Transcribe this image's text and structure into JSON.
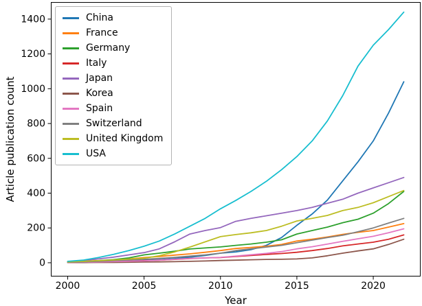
{
  "chart_data": {
    "type": "line",
    "title": "",
    "xlabel": "Year",
    "ylabel": "Article publication count",
    "x": [
      2000,
      2001,
      2002,
      2003,
      2004,
      2005,
      2006,
      2007,
      2008,
      2009,
      2010,
      2011,
      2012,
      2013,
      2014,
      2015,
      2016,
      2017,
      2018,
      2019,
      2020,
      2021,
      2022
    ],
    "series": [
      {
        "name": "China",
        "color": "#1f77b4",
        "values": [
          2,
          3,
          5,
          7,
          10,
          14,
          18,
          24,
          32,
          42,
          55,
          62,
          75,
          100,
          145,
          215,
          280,
          360,
          470,
          580,
          700,
          860,
          1040
        ]
      },
      {
        "name": "France",
        "color": "#ff7f0e",
        "values": [
          5,
          8,
          12,
          17,
          22,
          30,
          36,
          44,
          51,
          60,
          70,
          82,
          88,
          95,
          105,
          125,
          135,
          148,
          163,
          175,
          185,
          205,
          225
        ]
      },
      {
        "name": "Germany",
        "color": "#2ca02c",
        "values": [
          4,
          7,
          12,
          18,
          28,
          45,
          55,
          66,
          79,
          85,
          91,
          100,
          108,
          118,
          132,
          165,
          185,
          205,
          230,
          250,
          285,
          340,
          410
        ]
      },
      {
        "name": "Italy",
        "color": "#d62728",
        "values": [
          2,
          3,
          5,
          7,
          9,
          12,
          15,
          19,
          24,
          28,
          30,
          36,
          42,
          48,
          53,
          60,
          70,
          82,
          97,
          108,
          118,
          135,
          160
        ]
      },
      {
        "name": "Japan",
        "color": "#9467bd",
        "values": [
          5,
          12,
          22,
          32,
          45,
          58,
          80,
          120,
          165,
          185,
          202,
          238,
          255,
          270,
          285,
          300,
          318,
          342,
          365,
          400,
          430,
          460,
          490
        ]
      },
      {
        "name": "Korea",
        "color": "#8c564b",
        "values": [
          1,
          1,
          2,
          2,
          3,
          4,
          5,
          6,
          8,
          10,
          13,
          15,
          17,
          19,
          20,
          22,
          28,
          40,
          55,
          68,
          80,
          105,
          135
        ]
      },
      {
        "name": "Spain",
        "color": "#e377c2",
        "values": [
          2,
          3,
          5,
          7,
          9,
          11,
          15,
          20,
          25,
          28,
          31,
          38,
          46,
          54,
          64,
          80,
          92,
          107,
          123,
          138,
          152,
          172,
          195
        ]
      },
      {
        "name": "Switzerland",
        "color": "#7f7f7f",
        "values": [
          3,
          5,
          8,
          12,
          16,
          20,
          25,
          31,
          38,
          45,
          55,
          70,
          80,
          90,
          100,
          115,
          130,
          145,
          158,
          178,
          200,
          228,
          255
        ]
      },
      {
        "name": "United Kingdom",
        "color": "#bcbd22",
        "values": [
          5,
          8,
          12,
          16,
          21,
          26,
          40,
          62,
          90,
          120,
          150,
          162,
          172,
          185,
          210,
          240,
          255,
          272,
          300,
          318,
          345,
          380,
          415
        ]
      },
      {
        "name": "USA",
        "color": "#17becf",
        "values": [
          8,
          15,
          30,
          48,
          70,
          95,
          125,
          165,
          210,
          255,
          310,
          358,
          410,
          468,
          535,
          610,
          700,
          815,
          960,
          1130,
          1250,
          1340,
          1440
        ]
      }
    ],
    "xticks": [
      2000,
      2005,
      2010,
      2015,
      2020
    ],
    "yticks": [
      0,
      200,
      400,
      600,
      800,
      1000,
      1200,
      1400
    ],
    "xlim": [
      1998.9,
      2023.1
    ],
    "ylim": [
      -79,
      1494
    ],
    "legend_position": "upper left",
    "grid": false,
    "spine_color": "#000000",
    "background_color": "#ffffff"
  }
}
